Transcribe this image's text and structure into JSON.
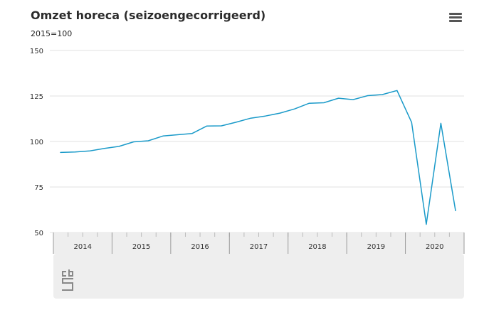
{
  "title": "Omzet horeca (seizoengecorrigeerd)",
  "subtitle": "2015=100",
  "menu_icon": "hamburger-menu-icon",
  "logo_icon": "cbs-logo-icon",
  "colors": {
    "line": "#1a9ac9",
    "grid": "#e0e0e0",
    "axis_band": "#eeeeee",
    "separator": "#9a9a9a"
  },
  "chart_data": {
    "type": "line",
    "title": "Omzet horeca (seizoengecorrigeerd)",
    "subtitle": "2015=100",
    "xlabel": "",
    "ylabel": "",
    "ylim": [
      50,
      150
    ],
    "yticks": [
      50,
      75,
      100,
      125,
      150
    ],
    "grid": true,
    "legend": "none",
    "year_labels": [
      "2014",
      "2015",
      "2016",
      "2017",
      "2018",
      "2019",
      "2020"
    ],
    "x": [
      "2014 Q1",
      "2014 Q2",
      "2014 Q3",
      "2014 Q4",
      "2015 Q1",
      "2015 Q2",
      "2015 Q3",
      "2015 Q4",
      "2016 Q1",
      "2016 Q2",
      "2016 Q3",
      "2016 Q4",
      "2017 Q1",
      "2017 Q2",
      "2017 Q3",
      "2017 Q4",
      "2018 Q1",
      "2018 Q2",
      "2018 Q3",
      "2018 Q4",
      "2019 Q1",
      "2019 Q2",
      "2019 Q3",
      "2019 Q4",
      "2020 Q1",
      "2020 Q2",
      "2020 Q3",
      "2020 Q4"
    ],
    "series": [
      {
        "values": [
          94,
          94.2,
          94.8,
          96.2,
          97.3,
          99.8,
          100.4,
          103,
          103.7,
          104.4,
          108.5,
          108.6,
          110.6,
          112.8,
          114,
          115.6,
          117.9,
          121,
          121.3,
          123.8,
          123,
          125.2,
          125.8,
          128,
          110.5,
          54.5,
          110,
          62
        ]
      }
    ]
  }
}
